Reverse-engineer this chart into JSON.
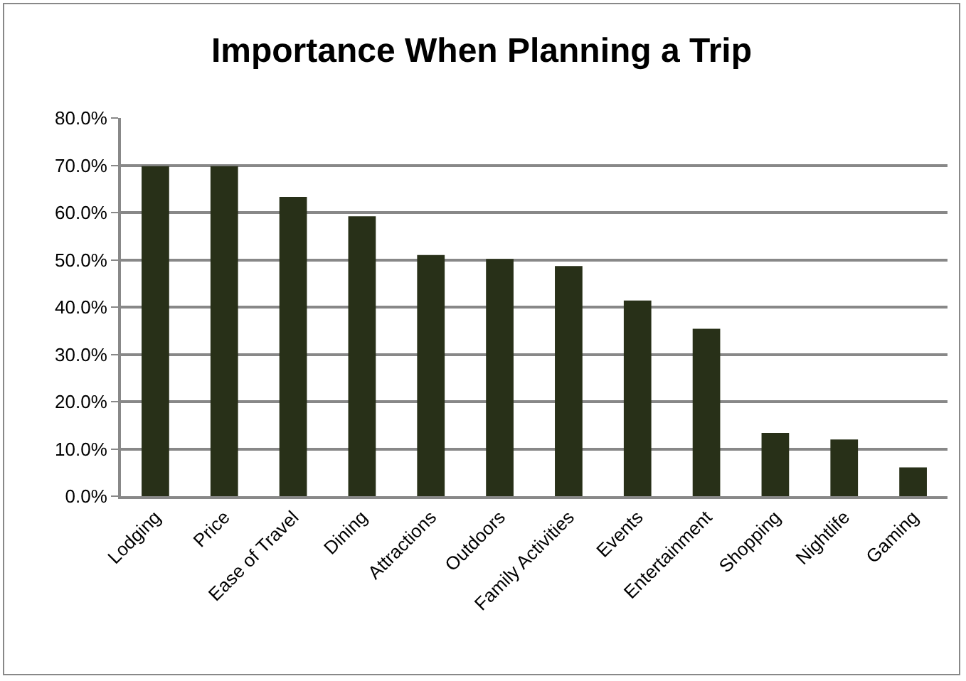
{
  "chart_data": {
    "type": "bar",
    "title": "Importance When Planning a Trip",
    "categories": [
      "Lodging",
      "Price",
      "Ease of Travel",
      "Dining",
      "Attractions",
      "Outdoors",
      "Family Activities",
      "Events",
      "Entertainment",
      "Shopping",
      "Nightlife",
      "Gaming"
    ],
    "values": [
      69.8,
      69.8,
      63.3,
      59.2,
      51.0,
      50.2,
      48.7,
      41.4,
      35.4,
      13.4,
      12.0,
      6.1
    ],
    "color": "#283018",
    "ylim": [
      0,
      80
    ],
    "yticks": [
      {
        "value": 0,
        "label": "0.0%"
      },
      {
        "value": 10,
        "label": "10.0%"
      },
      {
        "value": 20,
        "label": "20.0%"
      },
      {
        "value": 30,
        "label": "30.0%"
      },
      {
        "value": 40,
        "label": "40.0%"
      },
      {
        "value": 50,
        "label": "50.0%"
      },
      {
        "value": 60,
        "label": "60.0%"
      },
      {
        "value": 70,
        "label": "70.0%"
      },
      {
        "value": 80,
        "label": "80.0%"
      }
    ],
    "grid": "y"
  }
}
